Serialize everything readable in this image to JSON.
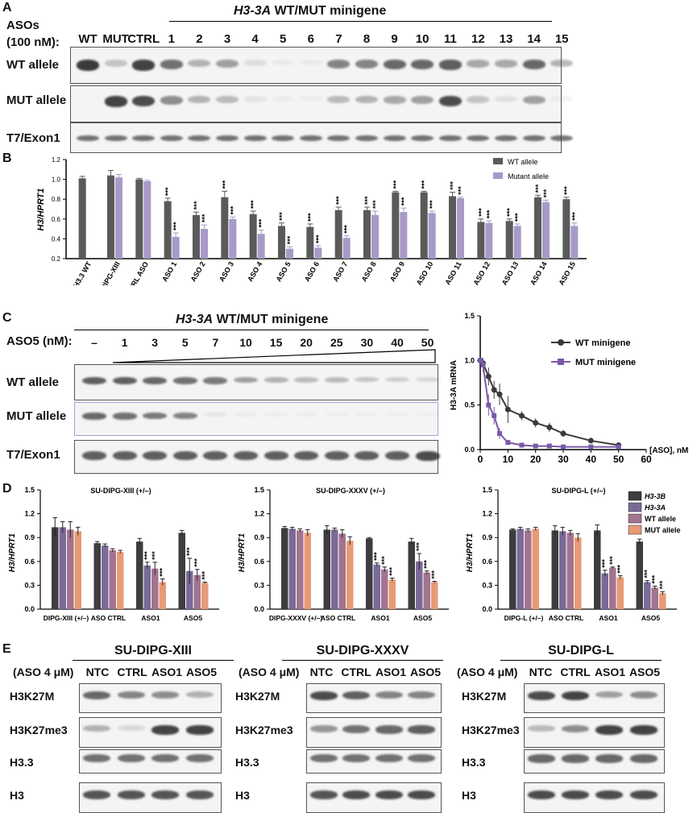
{
  "panelA": {
    "label": "A",
    "gene": "H3-3A",
    "title_rest": " WT/MUT minigene",
    "aso_label_line1": "ASOs",
    "aso_label_line2": "(100 nM):",
    "lanes": [
      "WT",
      "MUT",
      "CTRL",
      "1",
      "2",
      "3",
      "4",
      "5",
      "6",
      "7",
      "8",
      "9",
      "10",
      "11",
      "12",
      "13",
      "14",
      "15"
    ],
    "rows": [
      "WT allele",
      "MUT allele",
      "T7/Exon1"
    ],
    "wt_intensity": [
      1.0,
      0.25,
      0.95,
      0.7,
      0.35,
      0.45,
      0.12,
      0.05,
      0.05,
      0.6,
      0.6,
      0.75,
      0.75,
      0.8,
      0.4,
      0.4,
      0.75,
      0.35
    ],
    "mut_intensity": [
      0.0,
      0.95,
      0.9,
      0.55,
      0.35,
      0.3,
      0.08,
      0.04,
      0.04,
      0.3,
      0.35,
      0.4,
      0.45,
      0.9,
      0.25,
      0.1,
      0.45,
      0.05
    ],
    "t7_intensity": [
      0.7,
      0.7,
      0.7,
      0.7,
      0.7,
      0.7,
      0.7,
      0.7,
      0.7,
      0.7,
      0.7,
      0.7,
      0.7,
      0.7,
      0.7,
      0.7,
      0.7,
      0.7
    ]
  },
  "panelB": {
    "label": "B"
  },
  "panelC": {
    "label": "C",
    "gene": "H3-3A",
    "title_rest": " WT/MUT minigene",
    "dose_label": "ASO5 (nM):",
    "doses": [
      "–",
      "1",
      "3",
      "5",
      "7",
      "10",
      "15",
      "20",
      "25",
      "30",
      "40",
      "50"
    ],
    "rows": [
      "WT allele",
      "MUT allele",
      "T7/Exon1"
    ],
    "wt_intensity": [
      0.8,
      0.8,
      0.75,
      0.7,
      0.65,
      0.45,
      0.35,
      0.3,
      0.3,
      0.25,
      0.2,
      0.15
    ],
    "mut_intensity": [
      0.75,
      0.7,
      0.65,
      0.6,
      0.08,
      0.05,
      0.04,
      0.04,
      0.03,
      0.03,
      0.03,
      0.03
    ],
    "t7_intensity": [
      0.8,
      0.8,
      0.8,
      0.8,
      0.8,
      0.8,
      0.8,
      0.8,
      0.8,
      0.8,
      0.8,
      0.9
    ]
  },
  "panelD": {
    "label": "D"
  },
  "panelE": {
    "label": "E",
    "aso_label": "(ASO 4 μM)",
    "lanes": [
      "NTC",
      "CTRL",
      "ASO1",
      "ASO5"
    ],
    "rows": [
      "H3K27M",
      "H3K27me3",
      "H3.3",
      "H3"
    ],
    "blots": [
      {
        "title": "SU-DIPG-XIII",
        "h3k27m": [
          0.75,
          0.6,
          0.55,
          0.35
        ],
        "h3k27me3": [
          0.35,
          0.15,
          0.95,
          0.95
        ],
        "h33": [
          0.7,
          0.7,
          0.7,
          0.7
        ],
        "h3": [
          0.85,
          0.85,
          0.85,
          0.85
        ]
      },
      {
        "title": "SU-DIPG-XXXV",
        "h3k27m": [
          0.9,
          0.8,
          0.6,
          0.6
        ],
        "h3k27me3": [
          0.5,
          0.7,
          0.75,
          0.8
        ],
        "h33": [
          0.7,
          0.7,
          0.7,
          0.7
        ],
        "h3": [
          0.85,
          0.9,
          0.9,
          0.9
        ]
      },
      {
        "title": "SU-DIPG-L",
        "h3k27m": [
          0.9,
          0.95,
          0.45,
          0.55
        ],
        "h3k27me3": [
          0.3,
          0.55,
          0.95,
          0.95
        ],
        "h33": [
          0.75,
          0.75,
          0.75,
          0.75
        ],
        "h3": [
          0.9,
          0.9,
          0.9,
          0.9
        ]
      }
    ]
  },
  "chart_data": [
    {
      "id": "B",
      "type": "bar",
      "ylabel": "H3/HPRT1",
      "ylim": [
        0.2,
        1.2
      ],
      "yticks": [
        "0.2",
        "0.4",
        "0.6",
        "0.8",
        "1.0",
        "1.2"
      ],
      "categories": [
        "H3.3 WT",
        "DIPG-XIII",
        "CTRL ASO",
        "ASO 1",
        "ASO 2",
        "ASO 3",
        "ASO 4",
        "ASO 5",
        "ASO 6",
        "ASO 7",
        "ASO 8",
        "ASO 9",
        "ASO 10",
        "ASO 11",
        "ASO 12",
        "ASO 13",
        "ASO 14",
        "ASO 15"
      ],
      "series": [
        {
          "name": "WT allele",
          "color": "#5a5a5a",
          "values": [
            1.01,
            1.04,
            1.0,
            0.78,
            0.64,
            0.82,
            0.65,
            0.53,
            0.52,
            0.69,
            0.69,
            0.87,
            0.87,
            0.83,
            0.57,
            0.58,
            0.82,
            0.8
          ],
          "errors": [
            0.02,
            0.05,
            0.01,
            0.03,
            0.03,
            0.06,
            0.03,
            0.03,
            0.03,
            0.03,
            0.03,
            0.01,
            0.01,
            0.04,
            0.03,
            0.02,
            0.02,
            0.02
          ]
        },
        {
          "name": "Mutant allele",
          "color": "#a79ac8",
          "values": [
            null,
            1.02,
            0.98,
            0.42,
            0.5,
            0.6,
            0.45,
            0.3,
            0.31,
            0.41,
            0.64,
            0.67,
            0.66,
            0.81,
            0.56,
            0.53,
            0.77,
            0.53
          ],
          "errors": [
            null,
            0.03,
            0.01,
            0.04,
            0.04,
            0.02,
            0.04,
            0.02,
            0.02,
            0.02,
            0.04,
            0.04,
            0.02,
            0.01,
            0.02,
            0.02,
            0.02,
            0.03
          ]
        }
      ],
      "stars": "***"
    },
    {
      "id": "C-curve",
      "type": "line",
      "ylabel": "H3-3A mRNA",
      "xlabel": "[ASO], nM",
      "xlim": [
        0,
        60
      ],
      "ylim": [
        0,
        1.5
      ],
      "xticks": [
        "0",
        "10",
        "20",
        "30",
        "40",
        "50",
        "60"
      ],
      "yticks": [
        "0.0",
        "0.5",
        "1.0",
        "1.5"
      ],
      "series": [
        {
          "name": "WT minigene",
          "color": "#3a3a3a",
          "x": [
            0,
            1,
            3,
            5,
            7,
            10,
            15,
            20,
            25,
            30,
            40,
            50
          ],
          "y": [
            1.0,
            0.97,
            0.82,
            0.67,
            0.62,
            0.45,
            0.38,
            0.3,
            0.25,
            0.18,
            0.1,
            0.05
          ],
          "err": [
            0.03,
            0.05,
            0.1,
            0.1,
            0.12,
            0.15,
            0.05,
            0.05,
            0.05,
            0.04,
            0.02,
            0.02
          ]
        },
        {
          "name": "MUT minigene",
          "color": "#7b5aa6",
          "x": [
            0,
            1,
            3,
            5,
            7,
            10,
            15,
            20,
            25,
            30,
            40,
            50
          ],
          "y": [
            1.0,
            0.95,
            0.5,
            0.38,
            0.18,
            0.08,
            0.05,
            0.04,
            0.04,
            0.03,
            0.03,
            0.03
          ],
          "err": [
            0.03,
            0.08,
            0.12,
            0.1,
            0.06,
            0.02,
            0.01,
            0.01,
            0.01,
            0.01,
            0.01,
            0.01
          ]
        }
      ]
    },
    {
      "id": "D1",
      "type": "bar",
      "title": "SU-DIPG-XIII (+/–)",
      "ylabel": "H3/HPRT1",
      "ylim": [
        0,
        1.5
      ],
      "yticks": [
        "0.0",
        "0.3",
        "0.6",
        "0.9",
        "1.2",
        "1.5"
      ],
      "categories": [
        "DIPG-XIII (+/–)",
        "ASO CTRL",
        "ASO1",
        "ASO5"
      ],
      "series": [
        {
          "name": "H3-3B",
          "values": [
            1.03,
            0.83,
            0.85,
            0.96
          ],
          "errors": [
            0.12,
            0.02,
            0.04,
            0.03
          ]
        },
        {
          "name": "H3-3A",
          "values": [
            1.03,
            0.8,
            0.55,
            0.48
          ],
          "errors": [
            0.07,
            0.02,
            0.04,
            0.16
          ]
        },
        {
          "name": "WT allele",
          "values": [
            1.0,
            0.74,
            0.51,
            0.43
          ],
          "errors": [
            0.1,
            0.02,
            0.08,
            0.07
          ]
        },
        {
          "name": "MUT allele",
          "values": [
            0.98,
            0.72,
            0.34,
            0.33
          ],
          "errors": [
            0.05,
            0.02,
            0.04,
            0.01
          ]
        }
      ]
    },
    {
      "id": "D2",
      "type": "bar",
      "title": "SU-DIPG-XXXV (+/–)",
      "ylabel": "H3/HPRT1",
      "ylim": [
        0,
        1.5
      ],
      "yticks": [
        "0.0",
        "0.3",
        "0.6",
        "0.9",
        "1.2",
        "1.5"
      ],
      "categories": [
        "DIPG-XXXV (+/–)",
        "ASO CTRL",
        "ASO1",
        "ASO5"
      ],
      "series": [
        {
          "name": "H3-3B",
          "values": [
            1.02,
            1.0,
            0.89,
            0.85
          ],
          "errors": [
            0.02,
            0.05,
            0.01,
            0.04
          ]
        },
        {
          "name": "H3-3A",
          "values": [
            1.01,
            1.0,
            0.56,
            0.6
          ],
          "errors": [
            0.02,
            0.02,
            0.02,
            0.1
          ]
        },
        {
          "name": "WT allele",
          "values": [
            0.99,
            0.95,
            0.5,
            0.46
          ],
          "errors": [
            0.02,
            0.05,
            0.03,
            0.02
          ]
        },
        {
          "name": "MUT allele",
          "values": [
            0.96,
            0.86,
            0.37,
            0.34
          ],
          "errors": [
            0.04,
            0.05,
            0.02,
            0.01
          ]
        }
      ]
    },
    {
      "id": "D3",
      "type": "bar",
      "title": "SU-DIPG-L (+/–)",
      "ylabel": "H3/HPRT1",
      "ylim": [
        0,
        1.5
      ],
      "yticks": [
        "0.0",
        "0.3",
        "0.6",
        "0.9",
        "1.2",
        "1.5"
      ],
      "categories": [
        "DIPG-L (+/–)",
        "ASO CTRL",
        "ASO1",
        "ASO5"
      ],
      "series": [
        {
          "name": "H3-3B",
          "values": [
            1.0,
            0.99,
            0.99,
            0.85
          ],
          "errors": [
            0.01,
            0.06,
            0.07,
            0.03
          ]
        },
        {
          "name": "H3-3A",
          "values": [
            1.01,
            0.98,
            0.45,
            0.34
          ],
          "errors": [
            0.02,
            0.05,
            0.04,
            0.02
          ]
        },
        {
          "name": "WT allele",
          "values": [
            0.99,
            0.96,
            0.52,
            0.27
          ],
          "errors": [
            0.02,
            0.03,
            0.01,
            0.02
          ]
        },
        {
          "name": "MUT allele",
          "values": [
            1.01,
            0.9,
            0.4,
            0.2
          ],
          "errors": [
            0.02,
            0.05,
            0.02,
            0.02
          ]
        }
      ]
    }
  ],
  "colors": {
    "h33b": "#3d3d3d",
    "h33a": "#7a6a98",
    "wt": "#a3738f",
    "mut": "#e89a76"
  }
}
